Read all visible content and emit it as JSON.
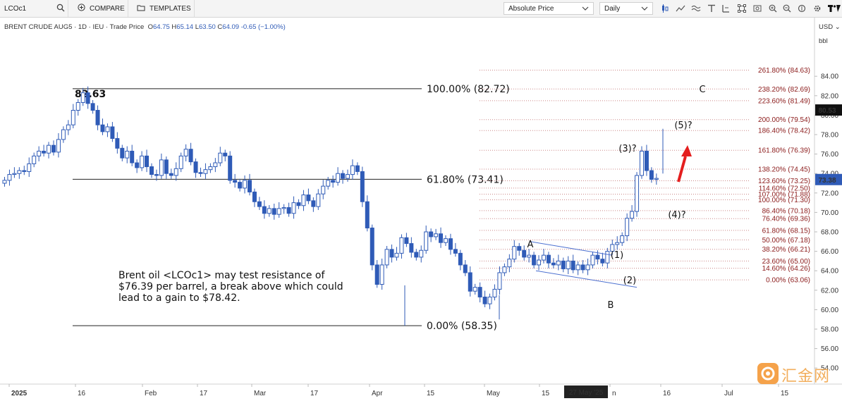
{
  "toolbar": {
    "symbol": "LCOc1",
    "compare_label": "COMPARE",
    "templates_label": "TEMPLATES",
    "price_mode": "Absolute Price",
    "interval": "Daily"
  },
  "info": {
    "title": "BRENT CRUDE AUG5 · 1D · IEU · Trade Price",
    "o_label": "O",
    "o": "64.75",
    "h_label": "H",
    "h": "65.14",
    "l_label": "L",
    "l": "63.50",
    "c_label": "C",
    "c": "64.09",
    "change": "-0.65 (−1.00%)"
  },
  "axis_units": {
    "currency": "USD",
    "unit": "bbl"
  },
  "annotation": "Brent oil <LCOc1> may test resistance of $76.39 per barrel, a break above which could lead to a gain to $78.42.",
  "watermark": "汇金网",
  "chart_data": {
    "type": "candlestick",
    "y_axis": {
      "range": [
        53,
        86.5
      ],
      "ticks": [
        54,
        56,
        58,
        60,
        62,
        64,
        66,
        68,
        70,
        72,
        74,
        76,
        78,
        80,
        82,
        84
      ]
    },
    "x_axis": {
      "tick_labels": [
        "2025",
        "16",
        "Feb",
        "17",
        "Mar",
        "17",
        "Apr",
        "15",
        "May",
        "15",
        "27 May '25",
        "n",
        "16",
        "Jul",
        "15"
      ]
    },
    "price_tags": {
      "high_tag": "80.53",
      "last_tag": "73.38"
    },
    "peak_label": "82.63",
    "major_fib": [
      {
        "label": "100.00% (82.72)",
        "value": 82.72
      },
      {
        "label": "61.80% (73.41)",
        "value": 73.41
      },
      {
        "label": "0.00% (58.35)",
        "value": 58.35
      }
    ],
    "minor_fib": [
      {
        "label": "261.80% (84.63)",
        "value": 84.63
      },
      {
        "label": "238.20% (82.69)",
        "value": 82.69
      },
      {
        "label": "223.60% (81.49)",
        "value": 81.49
      },
      {
        "label": "200.00% (79.54)",
        "value": 79.54
      },
      {
        "label": "186.40% (78.42)",
        "value": 78.42
      },
      {
        "label": "161.80% (76.39)",
        "value": 76.39
      },
      {
        "label": "138.20% (74.45)",
        "value": 74.45
      },
      {
        "label": "123.60% (73.25)",
        "value": 73.25
      },
      {
        "label": "114.60% (72.50)",
        "value": 72.5
      },
      {
        "label": "107.00% (71.88)",
        "value": 71.88
      },
      {
        "label": "100.00% (71.30)",
        "value": 71.3
      },
      {
        "label": "86.40% (70.18)",
        "value": 70.18
      },
      {
        "label": "76.40% (69.36)",
        "value": 69.36
      },
      {
        "label": "61.80% (68.15)",
        "value": 68.15
      },
      {
        "label": "50.00% (67.18)",
        "value": 67.18
      },
      {
        "label": "38.20% (66.21)",
        "value": 66.21
      },
      {
        "label": "23.60% (65.00)",
        "value": 65.0
      },
      {
        "label": "14.60% (64.26)",
        "value": 64.26
      },
      {
        "label": "0.00% (63.06)",
        "value": 63.06
      }
    ],
    "wave_labels": [
      "A",
      "B",
      "C",
      "(1)",
      "(2)",
      "(3)?",
      "(4)?",
      "(5)?"
    ],
    "closes": [
      73.3,
      73.9,
      74.0,
      74.3,
      74.2,
      75.0,
      75.8,
      76.3,
      76.1,
      76.9,
      76.2,
      77.5,
      78.5,
      79.0,
      80.5,
      81.3,
      82.3,
      81.2,
      80.5,
      79.0,
      78.3,
      78.8,
      77.6,
      76.6,
      75.6,
      76.3,
      75.1,
      74.6,
      75.8,
      74.7,
      73.9,
      73.8,
      75.4,
      74.0,
      73.8,
      74.5,
      75.8,
      76.5,
      75.2,
      74.1,
      74.0,
      74.4,
      74.7,
      75.1,
      76.1,
      75.8,
      73.3,
      73.1,
      72.5,
      73.3,
      72.1,
      71.1,
      70.6,
      69.9,
      70.4,
      69.8,
      70.4,
      70.5,
      69.9,
      71.0,
      70.7,
      71.8,
      71.2,
      70.6,
      71.9,
      72.7,
      73.3,
      73.1,
      74.0,
      73.5,
      73.9,
      74.8,
      74.2,
      71.1,
      68.4,
      64.6,
      62.6,
      64.6,
      66.2,
      65.4,
      65.8,
      67.4,
      66.8,
      65.9,
      65.4,
      66.1,
      68.0,
      67.5,
      67.8,
      66.9,
      67.3,
      66.2,
      65.8,
      64.6,
      63.8,
      61.9,
      62.3,
      61.3,
      60.6,
      61.3,
      62.1,
      63.8,
      64.4,
      65.2,
      66.5,
      66.1,
      65.4,
      65.6,
      64.6,
      65.1,
      65.6,
      64.8,
      64.6,
      65.0,
      64.2,
      65.0,
      64.1,
      64.6,
      64.1,
      64.6,
      65.6,
      65.2,
      64.8,
      66.0,
      66.7,
      66.9,
      67.6,
      69.4,
      70.1,
      73.8,
      76.3,
      74.3,
      73.4,
      73.5
    ]
  }
}
